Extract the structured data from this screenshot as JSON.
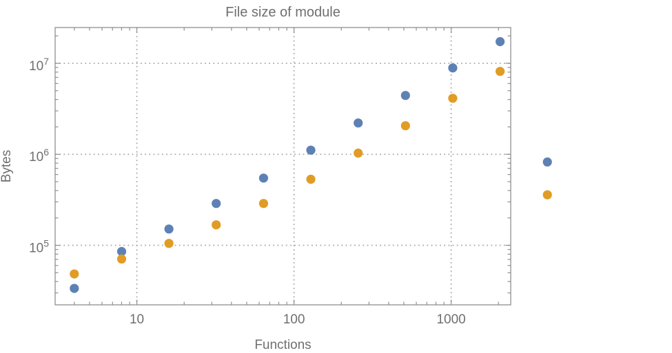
{
  "chart_data": {
    "type": "scatter",
    "title": "File size of module",
    "xlabel": "Functions",
    "ylabel": "Bytes",
    "x_scale": "log",
    "y_scale": "log",
    "grid": "dotted",
    "legend": "none",
    "x_range_log10": [
      0.48,
      3.379
    ],
    "y_range_log10": [
      4.346,
      7.393
    ],
    "x_ticks": [
      {
        "value": 10,
        "label": "10"
      },
      {
        "value": 100,
        "label": "100"
      },
      {
        "value": 1000,
        "label": "1000"
      }
    ],
    "y_ticks": [
      {
        "value": 100000,
        "base": "10",
        "exp": "5"
      },
      {
        "value": 1000000,
        "base": "10",
        "exp": "6"
      },
      {
        "value": 10000000,
        "base": "10",
        "exp": "7"
      }
    ],
    "series": [
      {
        "name": "series-1-blue",
        "color": "#5E81B5",
        "points": [
          [
            4,
            33600
          ],
          [
            8,
            85500
          ],
          [
            16,
            151000
          ],
          [
            32,
            288000
          ],
          [
            64,
            548000
          ],
          [
            128,
            1110000
          ],
          [
            256,
            2210000
          ],
          [
            512,
            4430000
          ],
          [
            1024,
            8890000
          ],
          [
            2048,
            17300000
          ],
          [
            4096,
            823000
          ]
        ]
      },
      {
        "name": "series-2-orange",
        "color": "#E19C24",
        "points": [
          [
            4,
            48500
          ],
          [
            8,
            70700
          ],
          [
            16,
            105000
          ],
          [
            32,
            168000
          ],
          [
            64,
            288000
          ],
          [
            128,
            532000
          ],
          [
            256,
            1030000
          ],
          [
            512,
            2060000
          ],
          [
            1024,
            4130000
          ],
          [
            2048,
            8150000
          ],
          [
            4096,
            359000
          ]
        ]
      }
    ]
  },
  "appearance": {
    "background": "#ffffff",
    "text_color": "#6f6f6f",
    "frame_color": "#8f8f8f",
    "grid_color": "#a9a9a9",
    "marker_radius": 6.6
  }
}
